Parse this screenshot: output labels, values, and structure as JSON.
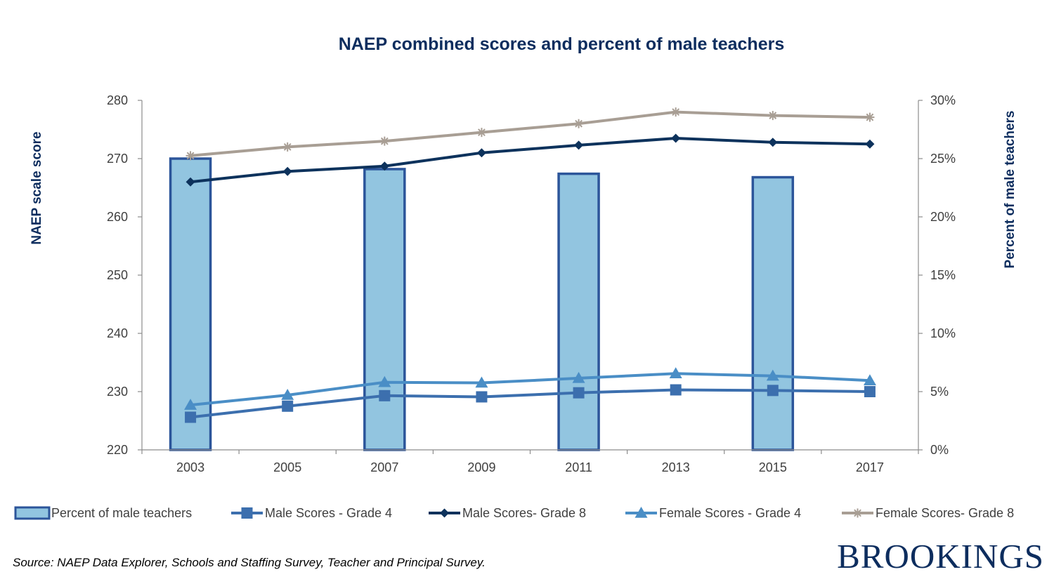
{
  "chart_data": {
    "type": "bar+line",
    "title": "NAEP combined scores and percent of male teachers",
    "categories": [
      "2003",
      "2005",
      "2007",
      "2009",
      "2011",
      "2013",
      "2015",
      "2017"
    ],
    "y_left": {
      "label": "NAEP scale score",
      "range": [
        220,
        280
      ],
      "ticks": [
        "220",
        "230",
        "240",
        "250",
        "260",
        "270",
        "280"
      ]
    },
    "y_right": {
      "label": "Percent of male teachers",
      "range": [
        0,
        30
      ],
      "ticks": [
        "0%",
        "5%",
        "10%",
        "15%",
        "20%",
        "25%",
        "30%"
      ]
    },
    "bars": {
      "name": "Percent of male teachers",
      "axis": "right",
      "values": [
        25,
        null,
        24.1,
        null,
        23.7,
        null,
        23.4,
        null
      ],
      "fill": "#92c5e0",
      "stroke": "#2c559a"
    },
    "series": [
      {
        "name": "Male Scores - Grade 4",
        "axis": "left",
        "marker": "square",
        "color": "#3c6fae",
        "values": [
          225.6,
          227.5,
          229.3,
          229.1,
          229.8,
          230.3,
          230.2,
          230.0
        ]
      },
      {
        "name": "Male  Scores- Grade 8",
        "axis": "left",
        "marker": "diamond",
        "color": "#0d325c",
        "values": [
          266.0,
          267.8,
          268.7,
          271.0,
          272.3,
          273.5,
          272.8,
          272.5
        ]
      },
      {
        "name": "Female Scores - Grade 4",
        "axis": "left",
        "marker": "triangle",
        "color": "#4a8ec6",
        "values": [
          227.7,
          229.4,
          231.6,
          231.5,
          232.3,
          233.1,
          232.7,
          231.9
        ]
      },
      {
        "name": "Female  Scores- Grade 8",
        "axis": "left",
        "marker": "asterisk",
        "color": "#a89e94",
        "values": [
          270.5,
          272.0,
          273.0,
          274.5,
          276.0,
          278.0,
          277.4,
          277.1
        ]
      }
    ],
    "legend_position": "bottom",
    "grid": false
  },
  "source": "Source: NAEP Data Explorer, Schools and Staffing Survey, Teacher and Principal Survey.",
  "brand": "BROOKINGS"
}
